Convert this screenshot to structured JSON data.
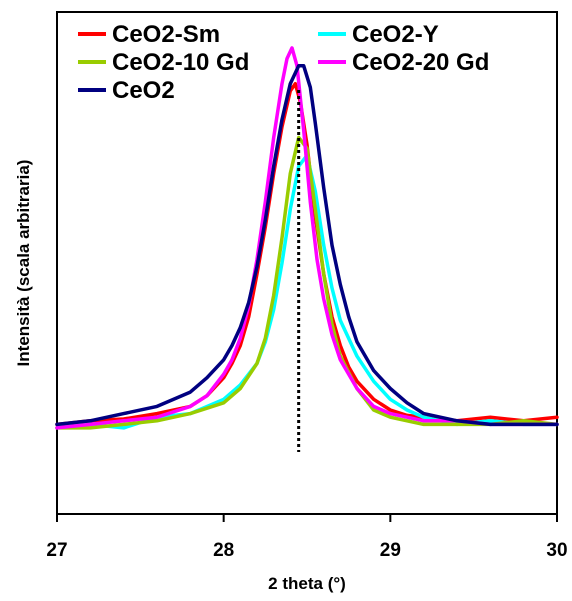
{
  "chart_data": {
    "type": "line",
    "xlabel": "2 theta (°)",
    "ylabel": "Intensità (scala arbitraria)",
    "xlim": [
      27,
      30
    ],
    "ylim": [
      -0.25,
      1.15
    ],
    "xticks": [
      "27",
      "28",
      "29",
      "30"
    ],
    "yticks_shown": false,
    "grid": false,
    "legend_position": "top",
    "reference_line": {
      "x": 28.45,
      "style": "dotted",
      "color": "#000000"
    },
    "series": [
      {
        "name": "CeO2-Sm",
        "color": "#ff0000",
        "x": [
          27.0,
          27.2,
          27.4,
          27.6,
          27.8,
          27.9,
          28.0,
          28.05,
          28.1,
          28.15,
          28.2,
          28.25,
          28.3,
          28.35,
          28.4,
          28.43,
          28.46,
          28.5,
          28.55,
          28.6,
          28.65,
          28.7,
          28.75,
          28.8,
          28.9,
          29.0,
          29.1,
          29.2,
          29.4,
          29.6,
          29.8,
          30.0
        ],
        "y": [
          0.0,
          0.01,
          0.015,
          0.03,
          0.05,
          0.08,
          0.13,
          0.17,
          0.22,
          0.3,
          0.42,
          0.55,
          0.7,
          0.83,
          0.93,
          0.95,
          0.9,
          0.78,
          0.58,
          0.42,
          0.3,
          0.22,
          0.16,
          0.12,
          0.07,
          0.04,
          0.025,
          0.02,
          0.01,
          0.02,
          0.01,
          0.02
        ]
      },
      {
        "name": "CeO2-Y",
        "color": "#00ffff",
        "x": [
          27.0,
          27.2,
          27.4,
          27.6,
          27.8,
          28.0,
          28.1,
          28.2,
          28.25,
          28.3,
          28.35,
          28.4,
          28.45,
          28.5,
          28.55,
          28.6,
          28.65,
          28.7,
          28.8,
          28.9,
          29.0,
          29.1,
          29.2,
          29.4,
          29.6,
          29.8,
          30.0
        ],
        "y": [
          -0.01,
          0.0,
          -0.01,
          0.02,
          0.03,
          0.07,
          0.11,
          0.17,
          0.23,
          0.32,
          0.45,
          0.6,
          0.72,
          0.75,
          0.65,
          0.5,
          0.38,
          0.29,
          0.19,
          0.12,
          0.07,
          0.04,
          0.02,
          0.0,
          0.01,
          0.0,
          0.0
        ]
      },
      {
        "name": "CeO2-10 Gd",
        "color": "#99cc00",
        "x": [
          27.0,
          27.2,
          27.4,
          27.6,
          27.8,
          28.0,
          28.1,
          28.2,
          28.25,
          28.3,
          28.35,
          28.4,
          28.45,
          28.5,
          28.55,
          28.6,
          28.65,
          28.7,
          28.8,
          28.9,
          29.0,
          29.2,
          29.4,
          29.6,
          29.8,
          30.0
        ],
        "y": [
          -0.01,
          -0.01,
          0.0,
          0.01,
          0.03,
          0.06,
          0.1,
          0.17,
          0.24,
          0.36,
          0.52,
          0.7,
          0.8,
          0.77,
          0.6,
          0.42,
          0.28,
          0.19,
          0.1,
          0.04,
          0.02,
          0.0,
          0.0,
          0.0,
          0.01,
          0.0
        ]
      },
      {
        "name": "CeO2-20 Gd",
        "color": "#ff00ff",
        "x": [
          27.0,
          27.2,
          27.4,
          27.6,
          27.8,
          27.9,
          28.0,
          28.05,
          28.1,
          28.15,
          28.2,
          28.25,
          28.3,
          28.35,
          28.38,
          28.41,
          28.44,
          28.48,
          28.52,
          28.56,
          28.6,
          28.65,
          28.7,
          28.8,
          28.9,
          29.0,
          29.2,
          29.4,
          29.6,
          29.8,
          30.0
        ],
        "y": [
          -0.01,
          0.0,
          0.01,
          0.02,
          0.05,
          0.08,
          0.14,
          0.18,
          0.24,
          0.33,
          0.46,
          0.62,
          0.8,
          0.95,
          1.02,
          1.05,
          1.0,
          0.82,
          0.62,
          0.46,
          0.35,
          0.25,
          0.18,
          0.1,
          0.05,
          0.03,
          0.01,
          0.01,
          0.0,
          0.0,
          0.0
        ]
      },
      {
        "name": "CeO2",
        "color": "#000080",
        "x": [
          27.0,
          27.2,
          27.4,
          27.6,
          27.8,
          27.9,
          28.0,
          28.05,
          28.1,
          28.15,
          28.2,
          28.25,
          28.3,
          28.35,
          28.4,
          28.45,
          28.48,
          28.52,
          28.55,
          28.6,
          28.65,
          28.7,
          28.75,
          28.8,
          28.9,
          29.0,
          29.1,
          29.2,
          29.4,
          29.6,
          29.8,
          30.0
        ],
        "y": [
          0.0,
          0.01,
          0.03,
          0.05,
          0.09,
          0.13,
          0.18,
          0.22,
          0.27,
          0.34,
          0.44,
          0.57,
          0.72,
          0.85,
          0.95,
          1.0,
          1.0,
          0.94,
          0.84,
          0.66,
          0.5,
          0.39,
          0.3,
          0.23,
          0.15,
          0.1,
          0.06,
          0.03,
          0.01,
          0.0,
          0.0,
          0.0
        ]
      }
    ]
  }
}
